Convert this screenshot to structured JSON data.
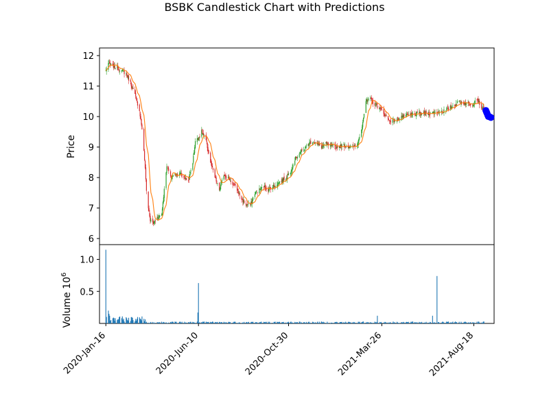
{
  "chart_data": {
    "type": "candlestick",
    "title": "BSBK Candlestick Chart with Predictions",
    "panels": [
      {
        "name": "price",
        "ylabel": "Price",
        "ylim": [
          5.8,
          12.25
        ],
        "yticks": [
          6,
          7,
          8,
          9,
          10,
          11,
          12
        ],
        "grid": false
      },
      {
        "name": "volume",
        "ylabel": "Volume",
        "yscale_label": "10",
        "yscale_exponent": "6",
        "ylim": [
          0,
          1.23
        ],
        "yticks": [
          0.5,
          1.0
        ],
        "ytick_labels": [
          "0.5",
          "1.0"
        ],
        "grid": false
      }
    ],
    "xaxis": {
      "type": "date",
      "xlim": [
        "2020-01-06",
        "2021-09-19"
      ],
      "tick_dates": [
        "2020-01-16",
        "2020-06-10",
        "2020-10-30",
        "2021-03-26",
        "2021-08-18"
      ],
      "tick_labels": [
        "2020-Jan-16",
        "2020-Jun-10",
        "2020-Oct-30",
        "2021-Mar-26",
        "2021-Aug-18"
      ],
      "tick_rotation": 45
    },
    "colors": {
      "up": "#2ca02c",
      "down": "#d62728",
      "moving_average": "#ff7f0e",
      "volume": "#1f77b4",
      "prediction": "#0000ff"
    },
    "price_close_anchors": [
      [
        "2020-01-16",
        11.5
      ],
      [
        "2020-01-20",
        11.75
      ],
      [
        "2020-01-27",
        11.65
      ],
      [
        "2020-02-03",
        11.6
      ],
      [
        "2020-02-10",
        11.5
      ],
      [
        "2020-02-17",
        11.4
      ],
      [
        "2020-02-24",
        11.1
      ],
      [
        "2020-03-02",
        10.7
      ],
      [
        "2020-03-09",
        10.2
      ],
      [
        "2020-03-13",
        9.6
      ],
      [
        "2020-03-17",
        8.6
      ],
      [
        "2020-03-20",
        7.6
      ],
      [
        "2020-03-23",
        7.0
      ],
      [
        "2020-03-26",
        6.6
      ],
      [
        "2020-03-31",
        6.5
      ],
      [
        "2020-04-06",
        6.7
      ],
      [
        "2020-04-13",
        6.8
      ],
      [
        "2020-04-17",
        7.6
      ],
      [
        "2020-04-21",
        8.4
      ],
      [
        "2020-04-27",
        8.0
      ],
      [
        "2020-05-04",
        8.1
      ],
      [
        "2020-05-11",
        8.15
      ],
      [
        "2020-05-18",
        8.0
      ],
      [
        "2020-05-25",
        7.9
      ],
      [
        "2020-06-01",
        8.5
      ],
      [
        "2020-06-05",
        9.2
      ],
      [
        "2020-06-10",
        9.3
      ],
      [
        "2020-06-15",
        9.5
      ],
      [
        "2020-06-22",
        9.2
      ],
      [
        "2020-06-29",
        8.5
      ],
      [
        "2020-07-06",
        8.0
      ],
      [
        "2020-07-13",
        7.6
      ],
      [
        "2020-07-20",
        8.1
      ],
      [
        "2020-07-27",
        8.0
      ],
      [
        "2020-08-03",
        7.8
      ],
      [
        "2020-08-10",
        7.6
      ],
      [
        "2020-08-17",
        7.3
      ],
      [
        "2020-08-24",
        7.1
      ],
      [
        "2020-08-31",
        7.1
      ],
      [
        "2020-09-07",
        7.5
      ],
      [
        "2020-09-14",
        7.6
      ],
      [
        "2020-09-21",
        7.7
      ],
      [
        "2020-09-28",
        7.6
      ],
      [
        "2020-10-05",
        7.7
      ],
      [
        "2020-10-12",
        7.8
      ],
      [
        "2020-10-19",
        7.9
      ],
      [
        "2020-10-26",
        8.0
      ],
      [
        "2020-11-02",
        8.2
      ],
      [
        "2020-11-09",
        8.6
      ],
      [
        "2020-11-16",
        8.8
      ],
      [
        "2020-11-23",
        8.9
      ],
      [
        "2020-11-30",
        9.1
      ],
      [
        "2020-12-07",
        9.2
      ],
      [
        "2020-12-14",
        9.1
      ],
      [
        "2020-12-21",
        9.0
      ],
      [
        "2020-12-28",
        9.1
      ],
      [
        "2021-01-11",
        9.0
      ],
      [
        "2021-01-25",
        9.05
      ],
      [
        "2021-02-08",
        9.0
      ],
      [
        "2021-02-15",
        9.05
      ],
      [
        "2021-02-22",
        9.6
      ],
      [
        "2021-03-01",
        10.5
      ],
      [
        "2021-03-08",
        10.55
      ],
      [
        "2021-03-15",
        10.4
      ],
      [
        "2021-03-22",
        10.3
      ],
      [
        "2021-03-29",
        10.1
      ],
      [
        "2021-04-05",
        9.9
      ],
      [
        "2021-04-12",
        9.85
      ],
      [
        "2021-04-19",
        9.9
      ],
      [
        "2021-04-26",
        10.0
      ],
      [
        "2021-05-10",
        10.05
      ],
      [
        "2021-05-24",
        10.1
      ],
      [
        "2021-06-07",
        10.1
      ],
      [
        "2021-06-21",
        10.15
      ],
      [
        "2021-07-05",
        10.2
      ],
      [
        "2021-07-19",
        10.4
      ],
      [
        "2021-07-26",
        10.5
      ],
      [
        "2021-08-02",
        10.45
      ],
      [
        "2021-08-16",
        10.4
      ],
      [
        "2021-08-23",
        10.6
      ],
      [
        "2021-08-30",
        10.3
      ],
      [
        "2021-09-03",
        10.25
      ]
    ],
    "volume_spikes_millions": [
      [
        "2020-01-16",
        1.15
      ],
      [
        "2020-06-10",
        0.63
      ],
      [
        "2020-06-09",
        0.17
      ],
      [
        "2021-06-21",
        0.74
      ],
      [
        "2021-06-14",
        0.12
      ],
      [
        "2021-03-19",
        0.12
      ],
      [
        "2020-01-20",
        0.2
      ],
      [
        "2020-01-21",
        0.15
      ],
      [
        "2020-01-22",
        0.12
      ]
    ],
    "predictions": {
      "marker": "circle",
      "points": [
        [
          "2021-09-06",
          10.2
        ],
        [
          "2021-09-07",
          10.15
        ],
        [
          "2021-09-08",
          10.1
        ],
        [
          "2021-09-09",
          10.05
        ],
        [
          "2021-09-10",
          10.0
        ],
        [
          "2021-09-13",
          9.98
        ],
        [
          "2021-09-14",
          9.97
        ]
      ]
    }
  }
}
